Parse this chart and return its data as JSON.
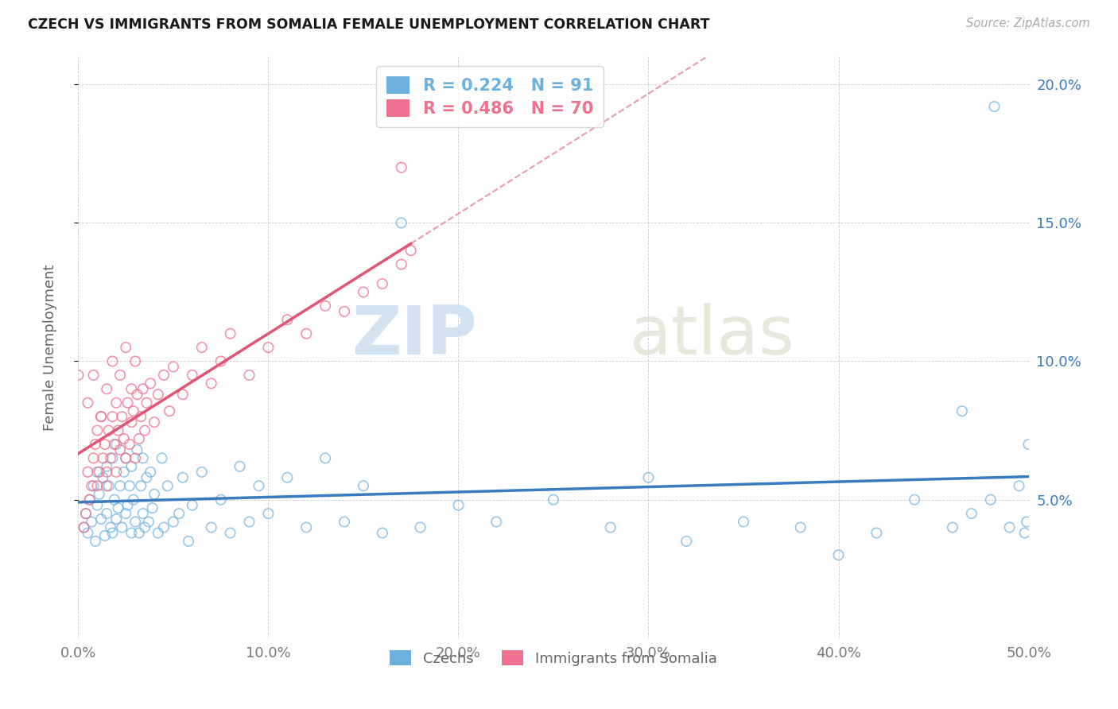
{
  "title": "CZECH VS IMMIGRANTS FROM SOMALIA FEMALE UNEMPLOYMENT CORRELATION CHART",
  "source": "Source: ZipAtlas.com",
  "ylabel": "Female Unemployment",
  "xmin": 0.0,
  "xmax": 0.5,
  "ymin": 0.0,
  "ymax": 0.21,
  "yticks": [
    0.05,
    0.1,
    0.15,
    0.2
  ],
  "ytick_labels_right": [
    "5.0%",
    "10.0%",
    "15.0%",
    "20.0%"
  ],
  "xticks": [
    0.0,
    0.1,
    0.2,
    0.3,
    0.4,
    0.5
  ],
  "xtick_labels": [
    "0.0%",
    "10.0%",
    "20.0%",
    "30.0%",
    "40.0%",
    "50.0%"
  ],
  "czech_color": "#6cb0e0",
  "somalia_color": "#f07090",
  "czech_line_color": "#3a7abf",
  "somalia_line_color": "#e05575",
  "czech_R": 0.224,
  "czech_N": 91,
  "somalia_R": 0.486,
  "somalia_N": 70,
  "watermark_zip": "ZIP",
  "watermark_atlas": "atlas",
  "legend_label_czech": "Czechs",
  "legend_label_somalia": "Immigrants from Somalia",
  "czech_scatter_x": [
    0.003,
    0.004,
    0.005,
    0.006,
    0.007,
    0.008,
    0.009,
    0.01,
    0.01,
    0.011,
    0.012,
    0.013,
    0.014,
    0.015,
    0.015,
    0.016,
    0.017,
    0.018,
    0.018,
    0.019,
    0.02,
    0.02,
    0.021,
    0.022,
    0.023,
    0.024,
    0.025,
    0.025,
    0.026,
    0.027,
    0.028,
    0.028,
    0.029,
    0.03,
    0.031,
    0.032,
    0.033,
    0.034,
    0.034,
    0.035,
    0.036,
    0.037,
    0.038,
    0.039,
    0.04,
    0.042,
    0.044,
    0.045,
    0.047,
    0.05,
    0.053,
    0.055,
    0.058,
    0.06,
    0.065,
    0.07,
    0.075,
    0.08,
    0.085,
    0.09,
    0.095,
    0.1,
    0.11,
    0.12,
    0.13,
    0.14,
    0.15,
    0.16,
    0.17,
    0.18,
    0.2,
    0.22,
    0.25,
    0.28,
    0.3,
    0.32,
    0.35,
    0.38,
    0.4,
    0.42,
    0.44,
    0.46,
    0.47,
    0.48,
    0.49,
    0.495,
    0.498,
    0.499,
    0.5,
    0.482,
    0.465
  ],
  "czech_scatter_y": [
    0.04,
    0.045,
    0.038,
    0.05,
    0.042,
    0.055,
    0.035,
    0.06,
    0.048,
    0.052,
    0.043,
    0.058,
    0.037,
    0.062,
    0.045,
    0.055,
    0.04,
    0.065,
    0.038,
    0.05,
    0.043,
    0.07,
    0.047,
    0.055,
    0.04,
    0.06,
    0.045,
    0.065,
    0.048,
    0.055,
    0.038,
    0.062,
    0.05,
    0.042,
    0.068,
    0.038,
    0.055,
    0.045,
    0.065,
    0.04,
    0.058,
    0.042,
    0.06,
    0.047,
    0.052,
    0.038,
    0.065,
    0.04,
    0.055,
    0.042,
    0.045,
    0.058,
    0.035,
    0.048,
    0.06,
    0.04,
    0.05,
    0.038,
    0.062,
    0.042,
    0.055,
    0.045,
    0.058,
    0.04,
    0.065,
    0.042,
    0.055,
    0.038,
    0.15,
    0.04,
    0.048,
    0.042,
    0.05,
    0.04,
    0.058,
    0.035,
    0.042,
    0.04,
    0.03,
    0.038,
    0.05,
    0.04,
    0.045,
    0.05,
    0.04,
    0.055,
    0.038,
    0.042,
    0.07,
    0.192,
    0.082
  ],
  "somalia_scatter_x": [
    0.003,
    0.004,
    0.005,
    0.006,
    0.007,
    0.008,
    0.009,
    0.01,
    0.01,
    0.011,
    0.012,
    0.013,
    0.014,
    0.015,
    0.015,
    0.016,
    0.017,
    0.018,
    0.019,
    0.02,
    0.021,
    0.022,
    0.023,
    0.024,
    0.025,
    0.026,
    0.027,
    0.028,
    0.029,
    0.03,
    0.031,
    0.032,
    0.033,
    0.034,
    0.035,
    0.036,
    0.038,
    0.04,
    0.042,
    0.045,
    0.048,
    0.05,
    0.055,
    0.06,
    0.065,
    0.07,
    0.075,
    0.08,
    0.09,
    0.1,
    0.11,
    0.12,
    0.13,
    0.14,
    0.15,
    0.16,
    0.17,
    0.175,
    0.17,
    0.0,
    0.005,
    0.008,
    0.012,
    0.015,
    0.018,
    0.02,
    0.022,
    0.025,
    0.028,
    0.03
  ],
  "somalia_scatter_y": [
    0.04,
    0.045,
    0.06,
    0.05,
    0.055,
    0.065,
    0.07,
    0.075,
    0.055,
    0.06,
    0.08,
    0.065,
    0.07,
    0.055,
    0.06,
    0.075,
    0.065,
    0.08,
    0.07,
    0.06,
    0.075,
    0.068,
    0.08,
    0.072,
    0.065,
    0.085,
    0.07,
    0.078,
    0.082,
    0.065,
    0.088,
    0.072,
    0.08,
    0.09,
    0.075,
    0.085,
    0.092,
    0.078,
    0.088,
    0.095,
    0.082,
    0.098,
    0.088,
    0.095,
    0.105,
    0.092,
    0.1,
    0.11,
    0.095,
    0.105,
    0.115,
    0.11,
    0.12,
    0.118,
    0.125,
    0.128,
    0.135,
    0.14,
    0.17,
    0.095,
    0.085,
    0.095,
    0.08,
    0.09,
    0.1,
    0.085,
    0.095,
    0.105,
    0.09,
    0.1
  ]
}
